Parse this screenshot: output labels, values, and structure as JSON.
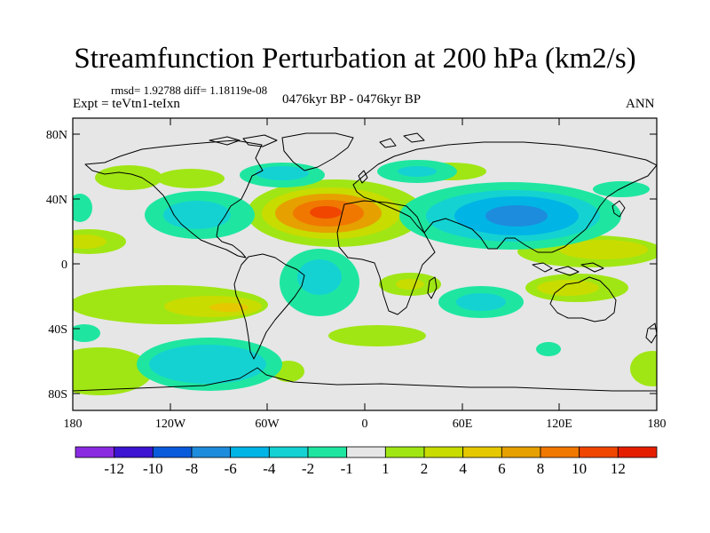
{
  "title": "Streamfunction Perturbation at 200 hPa (km2/s)",
  "stats": "rmsd= 1.92788 diff= 1.18119e-08",
  "expt": "Expt = teVtn1-teIxn",
  "period": "0476kyr BP - 0476kyr BP",
  "season": "ANN",
  "lat_ticks": [
    "80N",
    "40N",
    "0",
    "40S",
    "80S"
  ],
  "lon_ticks": [
    "180",
    "120W",
    "60W",
    "0",
    "60E",
    "120E",
    "180"
  ],
  "colorbar": {
    "colors": [
      "#8a2be2",
      "#3c14d2",
      "#0a5adc",
      "#1e8cdc",
      "#00b4e6",
      "#14d2d2",
      "#1ee6a0",
      "#e6e6e6",
      "#a0e614",
      "#c8dc00",
      "#e6c800",
      "#e6a000",
      "#f07800",
      "#f04600",
      "#e61e00"
    ],
    "labels": [
      "-12",
      "-10",
      "-8",
      "-6",
      "-4",
      "-2",
      "-1",
      "1",
      "2",
      "4",
      "6",
      "8",
      "10",
      "12"
    ]
  }
}
